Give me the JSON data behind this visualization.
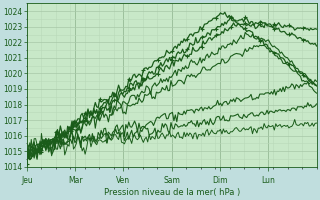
{
  "xlabel": "Pression niveau de la mer( hPa )",
  "bg_color": "#c0dede",
  "plot_bg_color": "#c8e8c8",
  "grid_major_color": "#a8c8a8",
  "grid_minor_color": "#b8d8b8",
  "line_color": "#1a5c1a",
  "ylim": [
    1014,
    1024.5
  ],
  "yticks": [
    1014,
    1015,
    1016,
    1017,
    1018,
    1019,
    1020,
    1021,
    1022,
    1023,
    1024
  ],
  "xlim": [
    0,
    5.0
  ],
  "days": [
    "Jeu",
    "Mar",
    "Ven",
    "Sam",
    "Dim",
    "Lun"
  ],
  "day_x": [
    0.0,
    0.833,
    1.667,
    2.5,
    3.333,
    4.167
  ],
  "series": [
    {
      "x": [
        0,
        3.4,
        5.0
      ],
      "y": [
        1014.5,
        1024.0,
        1019.2
      ],
      "marker": true,
      "lw": 0.9
    },
    {
      "x": [
        0,
        3.5,
        5.0
      ],
      "y": [
        1014.6,
        1023.5,
        1022.8
      ],
      "marker": true,
      "lw": 0.9
    },
    {
      "x": [
        0,
        3.6,
        4.2,
        5.0
      ],
      "y": [
        1014.7,
        1023.2,
        1023.0,
        1021.8
      ],
      "marker": true,
      "lw": 0.9
    },
    {
      "x": [
        0,
        3.8,
        4.2,
        5.0
      ],
      "y": [
        1014.8,
        1022.5,
        1022.0,
        1019.2
      ],
      "marker": false,
      "lw": 0.8
    },
    {
      "x": [
        0,
        4.0,
        4.2,
        5.0
      ],
      "y": [
        1014.9,
        1021.8,
        1021.5,
        1018.8
      ],
      "marker": false,
      "lw": 0.8
    },
    {
      "x": [
        0,
        5.0
      ],
      "y": [
        1015.0,
        1019.5
      ],
      "marker": false,
      "lw": 0.8
    },
    {
      "x": [
        0,
        5.0
      ],
      "y": [
        1015.1,
        1018.0
      ],
      "marker": false,
      "lw": 0.8
    },
    {
      "x": [
        0,
        5.0
      ],
      "y": [
        1015.2,
        1016.8
      ],
      "marker": false,
      "lw": 0.7
    }
  ],
  "noise_scale": 0.25,
  "noise_seed": 7
}
